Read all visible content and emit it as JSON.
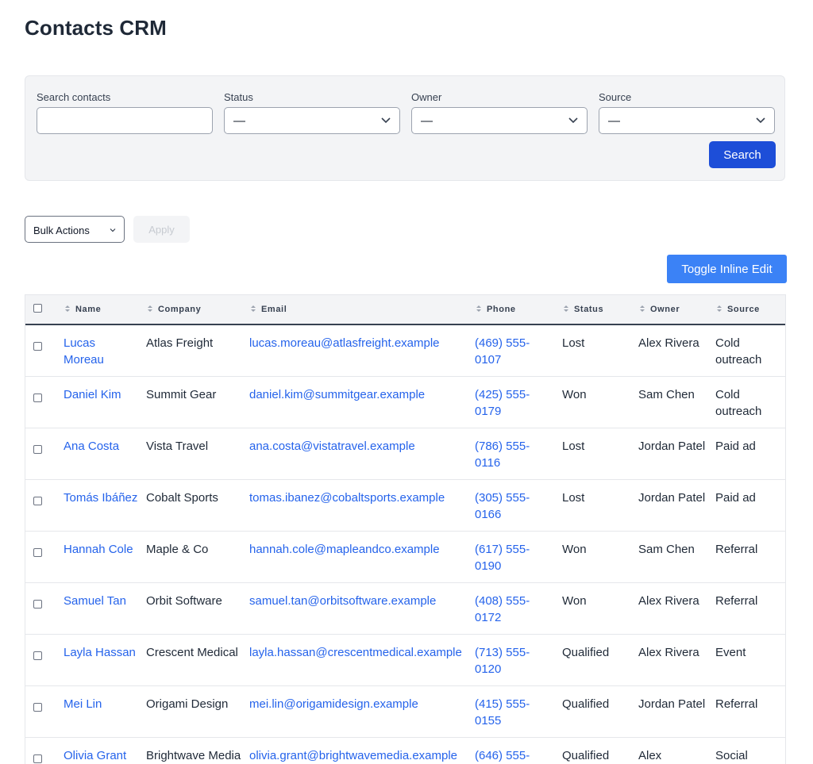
{
  "title": "Contacts CRM",
  "filters": {
    "search_label": "Search contacts",
    "search_value": "",
    "status_label": "Status",
    "status_value": "—",
    "owner_label": "Owner",
    "owner_value": "—",
    "source_label": "Source",
    "source_value": "—",
    "search_button": "Search"
  },
  "bulk": {
    "select_value": "Bulk Actions",
    "apply_label": "Apply"
  },
  "toggle_inline_edit": "Toggle Inline Edit",
  "table": {
    "headers": {
      "name": "Name",
      "company": "Company",
      "email": "Email",
      "phone": "Phone",
      "status": "Status",
      "owner": "Owner",
      "source": "Source"
    },
    "rows": [
      {
        "name": "Lucas Moreau",
        "company": "Atlas Freight",
        "email": "lucas.moreau@atlasfreight.example",
        "phone": "(469) 555-0107",
        "status": "Lost",
        "owner": "Alex Rivera",
        "source": "Cold outreach"
      },
      {
        "name": "Daniel Kim",
        "company": "Summit Gear",
        "email": "daniel.kim@summitgear.example",
        "phone": "(425) 555-0179",
        "status": "Won",
        "owner": "Sam Chen",
        "source": "Cold outreach"
      },
      {
        "name": "Ana Costa",
        "company": "Vista Travel",
        "email": "ana.costa@vistatravel.example",
        "phone": "(786) 555-0116",
        "status": "Lost",
        "owner": "Jordan Patel",
        "source": "Paid ad"
      },
      {
        "name": "Tomás Ibáñez",
        "company": "Cobalt Sports",
        "email": "tomas.ibanez@cobaltsports.example",
        "phone": "(305) 555-0166",
        "status": "Lost",
        "owner": "Jordan Patel",
        "source": "Paid ad"
      },
      {
        "name": "Hannah Cole",
        "company": "Maple & Co",
        "email": "hannah.cole@mapleandco.example",
        "phone": "(617) 555-0190",
        "status": "Won",
        "owner": "Sam Chen",
        "source": "Referral"
      },
      {
        "name": "Samuel Tan",
        "company": "Orbit Software",
        "email": "samuel.tan@orbitsoftware.example",
        "phone": "(408) 555-0172",
        "status": "Won",
        "owner": "Alex Rivera",
        "source": "Referral"
      },
      {
        "name": "Layla Hassan",
        "company": "Crescent Medical",
        "email": "layla.hassan@crescentmedical.example",
        "phone": "(713) 555-0120",
        "status": "Qualified",
        "owner": "Alex Rivera",
        "source": "Event"
      },
      {
        "name": "Mei Lin",
        "company": "Origami Design",
        "email": "mei.lin@origamidesign.example",
        "phone": "(415) 555-0155",
        "status": "Qualified",
        "owner": "Jordan Patel",
        "source": "Referral"
      },
      {
        "name": "Olivia Grant",
        "company": "Brightwave Media",
        "email": "olivia.grant@brightwavemedia.example",
        "phone": "(646) 555-",
        "status": "Qualified",
        "owner": "Alex",
        "source": "Social"
      }
    ]
  },
  "colors": {
    "primary": "#1d4ed8",
    "toggle": "#3b82f6",
    "link": "#2563eb",
    "panel": "#f3f4f6"
  },
  "icons": {
    "select": "chevron-down-icon",
    "sort": "sort-icon",
    "checkbox": "checkbox"
  }
}
